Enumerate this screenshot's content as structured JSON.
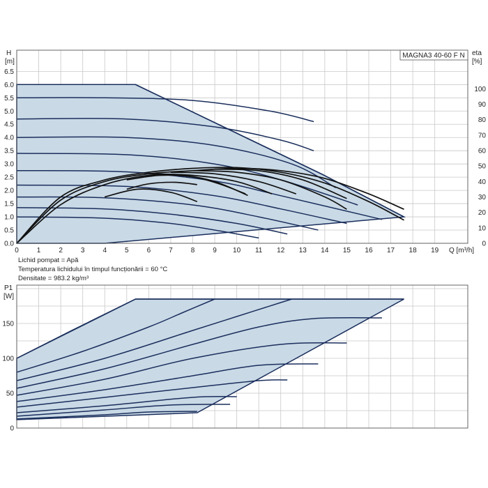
{
  "pump_label": "MAGNA3 40-60 F N",
  "notes": {
    "liquid": "Lichid pompat = Apă",
    "temperature": "Temperatura lichidului în timpul funcționării = 60 °C",
    "density": "Densitate = 983.2 kg/m³"
  },
  "colors": {
    "curve": "#1a2e5c",
    "fill": "#c9d9e6",
    "efficiency": "#111111",
    "grid": "#c8c8c8"
  },
  "chart_data": [
    {
      "type": "line",
      "title": "",
      "ylabel_top": "H",
      "ylabel_unit": "[m]",
      "y2label_top": "eta",
      "y2label_unit": "[%]",
      "xlabel": "Q [m³/h]",
      "xlim": [
        0,
        20.5
      ],
      "ylim": [
        0,
        7.3
      ],
      "y2lim": [
        0,
        125
      ],
      "xticks": [
        "0",
        "1",
        "2",
        "3",
        "4",
        "5",
        "6",
        "7",
        "8",
        "9",
        "10",
        "11",
        "12",
        "13",
        "14",
        "15",
        "16",
        "17",
        "18",
        "19"
      ],
      "yticks": [
        "0.0",
        "0.5",
        "1.0",
        "1.5",
        "2.0",
        "2.5",
        "3.0",
        "3.5",
        "4.0",
        "4.5",
        "5.0",
        "5.5",
        "6.0",
        "6.5"
      ],
      "y2ticks": [
        "0",
        "10",
        "20",
        "30",
        "40",
        "50",
        "60",
        "70",
        "80",
        "90",
        "100"
      ],
      "grid": true,
      "envelope": [
        [
          0,
          6.0
        ],
        [
          5.4,
          6.0
        ],
        [
          13.9,
          2.6
        ],
        [
          17.6,
          1.0
        ],
        [
          4.0,
          0.0
        ],
        [
          0,
          0
        ]
      ],
      "series": [
        {
          "values": [
            [
              0,
              6.0
            ],
            [
              5.4,
              6.0
            ],
            [
              13.9,
              2.6
            ],
            [
              17.6,
              1.0
            ]
          ]
        },
        {
          "values": [
            [
              0,
              5.5
            ],
            [
              4,
              5.5
            ],
            [
              8,
              5.4
            ],
            [
              11.5,
              5.0
            ],
            [
              13.5,
              4.6
            ]
          ]
        },
        {
          "values": [
            [
              0,
              4.7
            ],
            [
              5,
              4.7
            ],
            [
              9,
              4.4
            ],
            [
              12,
              3.9
            ],
            [
              13.5,
              3.5
            ]
          ]
        },
        {
          "values": [
            [
              0,
              4.0
            ],
            [
              5,
              4.0
            ],
            [
              9,
              3.7
            ],
            [
              12.5,
              3.0
            ],
            [
              14.5,
              2.1
            ]
          ]
        },
        {
          "values": [
            [
              0,
              3.4
            ],
            [
              5,
              3.35
            ],
            [
              9,
              3.0
            ],
            [
              12,
              2.4
            ],
            [
              15.5,
              1.45
            ]
          ]
        },
        {
          "values": [
            [
              0,
              2.75
            ],
            [
              5,
              2.7
            ],
            [
              9,
              2.35
            ],
            [
              12,
              1.8
            ],
            [
              16.6,
              0.9
            ]
          ]
        },
        {
          "values": [
            [
              0,
              2.2
            ],
            [
              5,
              2.15
            ],
            [
              9,
              1.8
            ],
            [
              12,
              1.3
            ],
            [
              15,
              0.75
            ]
          ]
        },
        {
          "values": [
            [
              0,
              1.75
            ],
            [
              4,
              1.72
            ],
            [
              8,
              1.45
            ],
            [
              11,
              1.0
            ],
            [
              13.7,
              0.5
            ]
          ]
        },
        {
          "values": [
            [
              0,
              1.35
            ],
            [
              4,
              1.3
            ],
            [
              7,
              1.1
            ],
            [
              10,
              0.75
            ],
            [
              12.3,
              0.35
            ]
          ]
        },
        {
          "values": [
            [
              0,
              1.0
            ],
            [
              4,
              0.95
            ],
            [
              7,
              0.75
            ],
            [
              9,
              0.5
            ],
            [
              11,
              0.2
            ]
          ]
        }
      ],
      "efficiency_series": [
        {
          "values": [
            [
              0,
              0
            ],
            [
              2,
              28
            ],
            [
              4,
              40
            ],
            [
              6,
              45
            ],
            [
              8,
              47
            ],
            [
              10,
              48.5
            ],
            [
              12,
              47
            ],
            [
              14,
              42
            ],
            [
              16,
              32
            ],
            [
              17.6,
              22
            ]
          ]
        },
        {
          "values": [
            [
              0,
              0
            ],
            [
              2,
              30
            ],
            [
              4,
              41
            ],
            [
              6,
              46
            ],
            [
              8,
              48.5
            ],
            [
              10,
              49
            ],
            [
              12,
              46
            ],
            [
              14,
              39
            ],
            [
              16,
              27
            ],
            [
              17.6,
              15
            ]
          ]
        },
        {
          "values": [
            [
              0,
              0
            ],
            [
              2,
              25
            ],
            [
              4,
              38
            ],
            [
              6,
              44
            ],
            [
              7.5,
              44
            ],
            [
              9,
              40
            ],
            [
              10.5,
              31
            ]
          ]
        },
        {
          "values": [
            [
              5,
              41
            ],
            [
              6.5,
              44
            ],
            [
              8,
              43
            ],
            [
              9.3,
              38
            ],
            [
              10.4,
              32
            ]
          ]
        },
        {
          "values": [
            [
              6,
              45
            ],
            [
              8,
              44
            ],
            [
              10,
              40
            ],
            [
              11.6,
              32
            ]
          ]
        },
        {
          "values": [
            [
              7,
              46
            ],
            [
              9,
              45
            ],
            [
              11,
              40
            ],
            [
              12.7,
              32
            ]
          ]
        },
        {
          "values": [
            [
              8,
              47
            ],
            [
              10,
              46
            ],
            [
              12,
              41
            ],
            [
              14,
              30
            ],
            [
              15,
              22
            ]
          ]
        },
        {
          "values": [
            [
              9,
              48
            ],
            [
              11,
              47
            ],
            [
              13,
              41
            ],
            [
              15,
              29
            ]
          ]
        },
        {
          "values": [
            [
              5,
              35
            ],
            [
              6,
              38.5
            ],
            [
              7.2,
              39.5
            ],
            [
              8.2,
              38
            ]
          ]
        },
        {
          "values": [
            [
              4,
              30
            ],
            [
              5.5,
              35
            ],
            [
              7,
              33
            ],
            [
              8.2,
              27
            ]
          ]
        }
      ]
    },
    {
      "type": "line",
      "title": "",
      "ylabel_top": "P1",
      "ylabel_unit": "[W]",
      "xlim": [
        0,
        20.5
      ],
      "ylim": [
        0,
        205
      ],
      "yticks": [
        "0",
        "50",
        "100",
        "150"
      ],
      "grid": true,
      "envelope": [
        [
          0,
          100
        ],
        [
          5.4,
          185
        ],
        [
          17.6,
          185
        ],
        [
          8.2,
          22
        ],
        [
          0,
          12
        ]
      ],
      "series": [
        {
          "values": [
            [
              0,
              100
            ],
            [
              2.5,
              140
            ],
            [
              5.4,
              185
            ],
            [
              17.6,
              185
            ]
          ]
        },
        {
          "values": [
            [
              0,
              80
            ],
            [
              3,
              110
            ],
            [
              6,
              145
            ],
            [
              7.5,
              165
            ],
            [
              9,
              185
            ]
          ]
        },
        {
          "values": [
            [
              0,
              68
            ],
            [
              4,
              100
            ],
            [
              8,
              140
            ],
            [
              10,
              160
            ],
            [
              12,
              180
            ],
            [
              12.5,
              185
            ]
          ]
        },
        {
          "values": [
            [
              0,
              57
            ],
            [
              4,
              85
            ],
            [
              8,
              120
            ],
            [
              11,
              145
            ],
            [
              13.5,
              157
            ],
            [
              16.6,
              158
            ]
          ]
        },
        {
          "values": [
            [
              0,
              47
            ],
            [
              4,
              70
            ],
            [
              8,
              100
            ],
            [
              12,
              120
            ],
            [
              15,
              122
            ]
          ]
        },
        {
          "values": [
            [
              0,
              38
            ],
            [
              4,
              55
            ],
            [
              8,
              75
            ],
            [
              11,
              90
            ],
            [
              13.7,
              92
            ]
          ]
        },
        {
          "values": [
            [
              0,
              30
            ],
            [
              4,
              44
            ],
            [
              8,
              58
            ],
            [
              11,
              68
            ],
            [
              12.3,
              69
            ]
          ]
        },
        {
          "values": [
            [
              0,
              22
            ],
            [
              4,
              32
            ],
            [
              8,
              44
            ],
            [
              10,
              45
            ]
          ]
        },
        {
          "values": [
            [
              0,
              17
            ],
            [
              4,
              26
            ],
            [
              7,
              33
            ],
            [
              9.7,
              34
            ]
          ]
        },
        {
          "values": [
            [
              0,
              13
            ],
            [
              4,
              19
            ],
            [
              6,
              23
            ],
            [
              8.2,
              24
            ]
          ]
        }
      ]
    }
  ]
}
